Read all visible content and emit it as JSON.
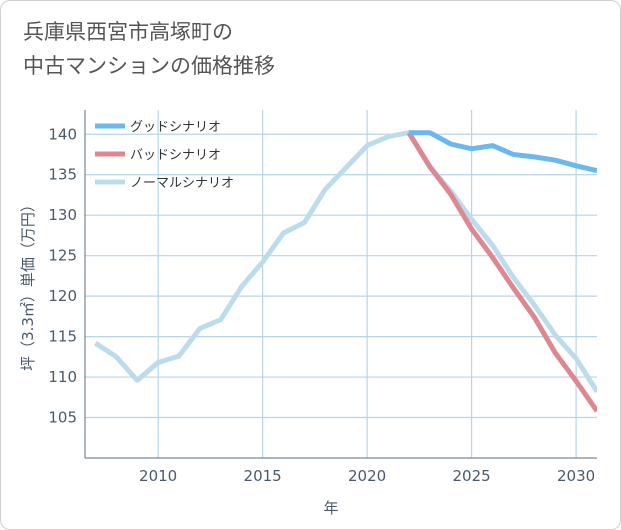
{
  "title_lines": [
    "兵庫県西宮市高塚町の",
    "中古マンションの価格推移"
  ],
  "chart_data": {
    "type": "line",
    "title": "兵庫県西宮市高塚町の中古マンションの価格推移",
    "xlabel": "年",
    "ylabel": "坪（3.3㎡）単価（万円）",
    "xlim": [
      2006.5,
      2031
    ],
    "ylim": [
      100,
      143
    ],
    "x_ticks": [
      2010,
      2015,
      2020,
      2025,
      2030
    ],
    "y_ticks": [
      105,
      110,
      115,
      120,
      125,
      130,
      135,
      140
    ],
    "grid": true,
    "legend_position": "top-left",
    "series": [
      {
        "name": "グッドシナリオ",
        "color": "#6bb8ee",
        "x": [
          2022,
          2023,
          2024,
          2025,
          2026,
          2027,
          2028,
          2029,
          2030,
          2031
        ],
        "values": [
          140.2,
          140.2,
          138.8,
          138.2,
          138.6,
          137.5,
          137.2,
          136.8,
          136.1,
          135.5
        ]
      },
      {
        "name": "バッドシナリオ",
        "color": "#dd8890",
        "x": [
          2022,
          2023,
          2024,
          2025,
          2026,
          2027,
          2028,
          2029,
          2030,
          2031
        ],
        "values": [
          140.2,
          136.0,
          132.6,
          128.3,
          124.8,
          121.0,
          117.4,
          113.0,
          109.5,
          105.8
        ]
      },
      {
        "name": "ノーマルシナリオ",
        "color": "#bcdcec",
        "x": [
          2007,
          2008,
          2009,
          2010,
          2011,
          2012,
          2013,
          2014,
          2015,
          2016,
          2017,
          2018,
          2019,
          2020,
          2021,
          2022,
          2023,
          2024,
          2025,
          2026,
          2027,
          2028,
          2029,
          2030,
          2031
        ],
        "values": [
          114.2,
          112.5,
          109.6,
          111.8,
          112.6,
          116.0,
          117.1,
          121.2,
          124.2,
          127.8,
          129.1,
          133.2,
          135.9,
          138.6,
          139.7,
          140.2,
          136.0,
          133.0,
          129.5,
          126.3,
          122.3,
          118.9,
          115.2,
          112.3,
          108.2
        ]
      }
    ]
  }
}
